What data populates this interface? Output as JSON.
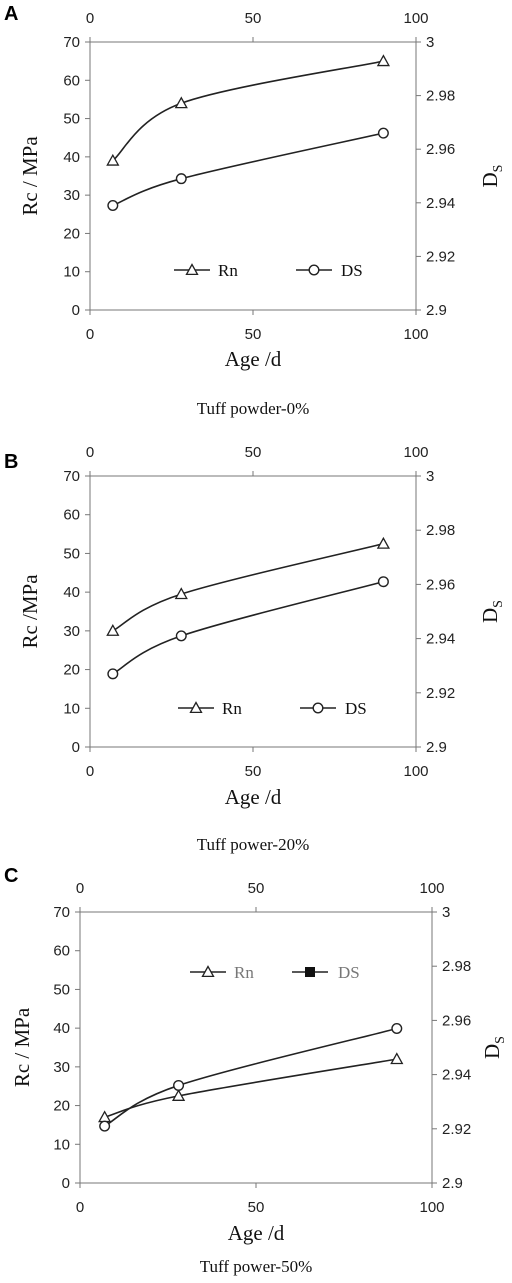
{
  "chart_data": [
    {
      "type": "line",
      "panel": "A",
      "caption": "Tuff powder-0%",
      "xlabel": "Age /d",
      "ylabel": "Rc / MPa",
      "y2label": "D",
      "y2label_sub": "S",
      "xlim": [
        0,
        100
      ],
      "xticks": [
        "0",
        "50",
        "100"
      ],
      "ylim": [
        0,
        70
      ],
      "yticks": [
        "0",
        "10",
        "20",
        "30",
        "40",
        "50",
        "60",
        "70"
      ],
      "y2lim": [
        2.9,
        3.0
      ],
      "y2ticks": [
        "2.9",
        "2.92",
        "2.94",
        "2.96",
        "2.98",
        "3"
      ],
      "legend": [
        {
          "label": "Rn",
          "marker": "triangle-open",
          "grey": false
        },
        {
          "label": "DS",
          "marker": "circle-open",
          "grey": false
        }
      ],
      "series": [
        {
          "name": "Rn",
          "axis": "left",
          "marker": "triangle-open",
          "x": [
            7,
            28,
            90
          ],
          "y": [
            39,
            54,
            65
          ]
        },
        {
          "name": "DS",
          "axis": "right",
          "marker": "circle-open",
          "x": [
            7,
            28,
            90
          ],
          "y": [
            2.939,
            2.949,
            2.966
          ]
        }
      ]
    },
    {
      "type": "line",
      "panel": "B",
      "caption": "Tuff power-20%",
      "xlabel": "Age /d",
      "ylabel": "Rc /MPa",
      "y2label": "D",
      "y2label_sub": "S",
      "xlim": [
        0,
        100
      ],
      "xticks": [
        "0",
        "50",
        "100"
      ],
      "ylim": [
        0,
        70
      ],
      "yticks": [
        "0",
        "10",
        "20",
        "30",
        "40",
        "50",
        "60",
        "70"
      ],
      "y2lim": [
        2.9,
        3.0
      ],
      "y2ticks": [
        "2.9",
        "2.92",
        "2.94",
        "2.96",
        "2.98",
        "3"
      ],
      "legend": [
        {
          "label": "Rn",
          "marker": "triangle-open",
          "grey": false
        },
        {
          "label": "DS",
          "marker": "circle-open",
          "grey": false
        }
      ],
      "series": [
        {
          "name": "Rn",
          "axis": "left",
          "marker": "triangle-open",
          "x": [
            7,
            28,
            90
          ],
          "y": [
            30,
            39.5,
            52.5
          ]
        },
        {
          "name": "DS",
          "axis": "right",
          "marker": "circle-open",
          "x": [
            7,
            28,
            90
          ],
          "y": [
            2.927,
            2.941,
            2.961
          ]
        }
      ]
    },
    {
      "type": "line",
      "panel": "C",
      "caption": "Tuff power-50%",
      "xlabel": "Age /d",
      "ylabel": "Rc / MPa",
      "y2label": "D",
      "y2label_sub": "S",
      "xlim": [
        0,
        100
      ],
      "xticks": [
        "0",
        "50",
        "100"
      ],
      "ylim": [
        0,
        70
      ],
      "yticks": [
        "0",
        "10",
        "20",
        "30",
        "40",
        "50",
        "60",
        "70"
      ],
      "y2lim": [
        2.9,
        3.0
      ],
      "y2ticks": [
        "2.9",
        "2.92",
        "2.94",
        "2.96",
        "2.98",
        "3"
      ],
      "legend": [
        {
          "label": "Rn",
          "marker": "triangle-open",
          "grey": true
        },
        {
          "label": "DS",
          "marker": "square-filled",
          "grey": true
        }
      ],
      "series": [
        {
          "name": "Rn",
          "axis": "left",
          "marker": "triangle-open",
          "x": [
            7,
            28,
            90
          ],
          "y": [
            17,
            22.5,
            32
          ]
        },
        {
          "name": "DS",
          "axis": "right",
          "marker": "circle-open",
          "x": [
            7,
            28,
            90
          ],
          "y": [
            2.921,
            2.936,
            2.957
          ]
        }
      ]
    }
  ]
}
